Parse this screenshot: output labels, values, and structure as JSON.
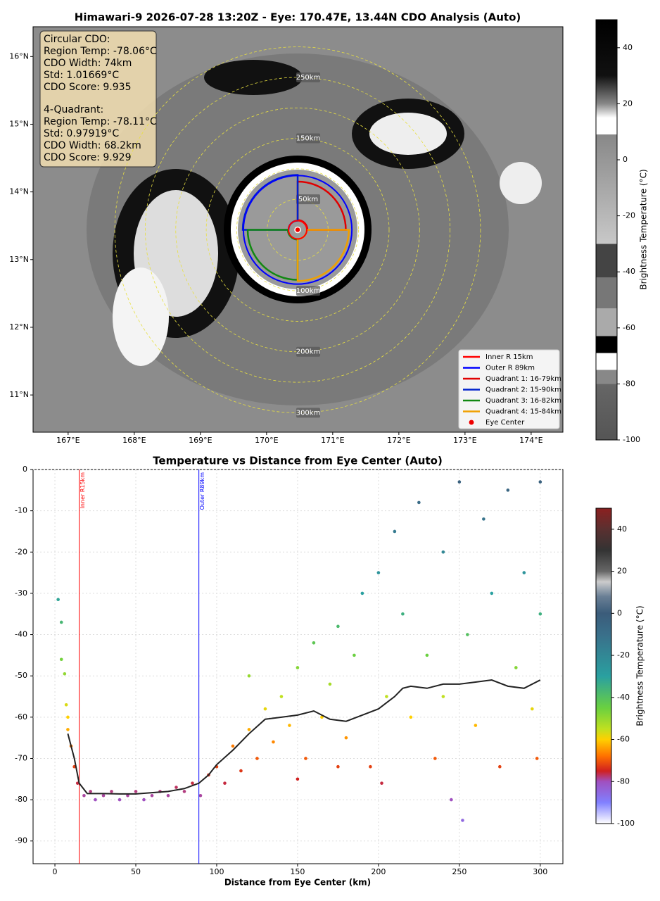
{
  "chart_data": [
    {
      "type": "map",
      "title": "Himawari-9 2026-07-28 13:20Z - Eye: 170.47E, 13.44N CDO Analysis (Auto)",
      "xlim": [
        166.47,
        174.48
      ],
      "ylim": [
        10.45,
        16.44
      ],
      "xticks": [
        {
          "value": 167,
          "label": "167°E"
        },
        {
          "value": 168,
          "label": "168°E"
        },
        {
          "value": 169,
          "label": "169°E"
        },
        {
          "value": 170,
          "label": "170°E"
        },
        {
          "value": 171,
          "label": "171°E"
        },
        {
          "value": 172,
          "label": "172°E"
        },
        {
          "value": 173,
          "label": "173°E"
        },
        {
          "value": 174,
          "label": "174°E"
        }
      ],
      "yticks": [
        {
          "value": 11,
          "label": "11°N"
        },
        {
          "value": 12,
          "label": "12°N"
        },
        {
          "value": 13,
          "label": "13°N"
        },
        {
          "value": 14,
          "label": "14°N"
        },
        {
          "value": 15,
          "label": "15°N"
        },
        {
          "value": 16,
          "label": "16°N"
        }
      ],
      "eye": {
        "lon": 170.47,
        "lat": 13.44
      },
      "rings": [
        {
          "value": 50,
          "label": "50km"
        },
        {
          "value": 100,
          "label": "100km"
        },
        {
          "value": 150,
          "label": "150km"
        },
        {
          "value": 200,
          "label": "200km"
        },
        {
          "value": 250,
          "label": "250km"
        },
        {
          "value": 300,
          "label": "300km"
        }
      ],
      "inner_r": {
        "value": 15,
        "label": "Inner R 15km",
        "color": "#ff0000"
      },
      "outer_r": {
        "value": 89,
        "label": "Outer R 89km",
        "color": "#0000ff"
      },
      "quadrants": [
        {
          "label": "Quadrant 1: 16-79km",
          "inner": 16,
          "outer": 79,
          "color": "#e00000"
        },
        {
          "label": "Quadrant 2: 15-90km",
          "inner": 15,
          "outer": 90,
          "color": "#0022cc"
        },
        {
          "label": "Quadrant 3: 16-82km",
          "inner": 16,
          "outer": 82,
          "color": "#118811"
        },
        {
          "label": "Quadrant 4: 15-84km",
          "inner": 15,
          "outer": 84,
          "color": "#f0a000"
        }
      ],
      "eye_label": "Eye Center",
      "info_box": {
        "circular": [
          "Circular CDO:",
          "Region Temp: -78.06°C",
          "CDO Width: 74km",
          "Std: 1.01669°C",
          "CDO Score: 9.935"
        ],
        "quadrant": [
          "4-Quadrant:",
          "Region Temp: -78.11°C",
          "Std: 0.97919°C",
          "CDO Width: 68.2km",
          "CDO Score: 9.929"
        ]
      },
      "colorbar": {
        "label": "Brightness Temperature (°C)",
        "lim": [
          -100,
          50
        ],
        "ticks": [
          -100,
          -80,
          -60,
          -40,
          -20,
          0,
          20,
          40
        ],
        "colormap": [
          {
            "value": 50,
            "color": "#000000"
          },
          {
            "value": 30,
            "color": "#111111"
          },
          {
            "value": 20,
            "color": "#888888"
          },
          {
            "value": 15,
            "color": "#ffffff"
          },
          {
            "value": 9,
            "color": "#ffffff"
          },
          {
            "value": 9,
            "color": "#888888"
          },
          {
            "value": -30,
            "color": "#c8c8c8"
          },
          {
            "value": -30,
            "color": "#444444"
          },
          {
            "value": -42,
            "color": "#444444"
          },
          {
            "value": -42,
            "color": "#777777"
          },
          {
            "value": -53,
            "color": "#777777"
          },
          {
            "value": -53,
            "color": "#aaaaaa"
          },
          {
            "value": -63,
            "color": "#aaaaaa"
          },
          {
            "value": -63,
            "color": "#000000"
          },
          {
            "value": -69,
            "color": "#000000"
          },
          {
            "value": -69,
            "color": "#ffffff"
          },
          {
            "value": -75,
            "color": "#ffffff"
          },
          {
            "value": -75,
            "color": "#888888"
          },
          {
            "value": -80,
            "color": "#888888"
          },
          {
            "value": -80,
            "color": "#666666"
          },
          {
            "value": -100,
            "color": "#555555"
          }
        ]
      }
    },
    {
      "type": "scatter",
      "title": "Temperature vs Distance from Eye Center (Auto)",
      "xlabel": "Distance from Eye Center (km)",
      "xlim": [
        -13.5,
        314
      ],
      "ylim": [
        -95.5,
        0
      ],
      "xticks": [
        0,
        50,
        100,
        150,
        200,
        250,
        300
      ],
      "yticks": [
        -90,
        -80,
        -70,
        -60,
        -50,
        -40,
        -30,
        -20,
        -10,
        0
      ],
      "grid": true,
      "x": [
        2,
        4,
        4,
        6,
        7,
        8,
        8,
        10,
        12,
        14,
        18,
        22,
        25,
        30,
        35,
        40,
        45,
        50,
        55,
        60,
        65,
        70,
        75,
        80,
        85,
        90,
        95,
        100,
        105,
        110,
        115,
        120,
        125,
        130,
        135,
        140,
        145,
        150,
        155,
        160,
        165,
        170,
        175,
        180,
        185,
        190,
        195,
        200,
        202,
        205,
        210,
        215,
        220,
        225,
        230,
        235,
        240,
        245,
        250,
        252,
        255,
        260,
        265,
        270,
        275,
        280,
        285,
        290,
        295,
        300,
        298,
        300,
        150,
        175,
        120,
        240
      ],
      "values": [
        -31.5,
        -37,
        -46,
        -49.5,
        -57,
        -60,
        -63,
        -67,
        -72,
        -76,
        -79,
        -78,
        -80,
        -79,
        -78,
        -80,
        -79,
        -78,
        -80,
        -79,
        -78,
        -79,
        -77,
        -78,
        -76,
        -79,
        -74,
        -72,
        -76,
        -67,
        -73,
        -63,
        -70,
        -58,
        -66,
        -55,
        -62,
        -48,
        -70,
        -42,
        -60,
        -52,
        -38,
        -65,
        -45,
        -30,
        -72,
        -25,
        -76,
        -55,
        -15,
        -35,
        -60,
        -8,
        -45,
        -70,
        -20,
        -80,
        -3,
        -85,
        -40,
        -62,
        -12,
        -30,
        -72,
        -5,
        -48,
        -25,
        -58,
        -35,
        -70,
        -3,
        -75,
        -72,
        -50,
        -55
      ],
      "line": {
        "color": "#222222",
        "x": [
          8,
          12,
          15,
          20,
          30,
          40,
          50,
          60,
          70,
          80,
          89,
          95,
          100,
          110,
          120,
          130,
          140,
          150,
          160,
          170,
          180,
          190,
          200,
          210,
          215,
          220,
          230,
          240,
          250,
          260,
          270,
          280,
          290,
          300
        ],
        "values": [
          -64,
          -70,
          -76,
          -78.5,
          -78.5,
          -78.6,
          -78.6,
          -78.3,
          -78,
          -77.3,
          -76,
          -74,
          -71.5,
          -68,
          -64,
          -60.5,
          -60,
          -59.5,
          -58.5,
          -60.5,
          -61,
          -59.5,
          -58,
          -55,
          -53,
          -52.5,
          -53,
          -52,
          -52,
          -51.5,
          -51,
          -52.5,
          -53,
          -51
        ]
      },
      "vlines": [
        {
          "value": 15,
          "label": "Inner R15km",
          "color": "#ff0000"
        },
        {
          "value": 89,
          "label": "Outer R89km",
          "color": "#0000ff"
        }
      ],
      "colorbar": {
        "label": "Brightness Temperature (°C)",
        "lim": [
          -100,
          50
        ],
        "ticks": [
          -100,
          -80,
          -60,
          -40,
          -20,
          0,
          20,
          40
        ],
        "colormap": [
          {
            "value": 50,
            "color": "#8b2020"
          },
          {
            "value": 40,
            "color": "#5a3030"
          },
          {
            "value": 30,
            "color": "#333333"
          },
          {
            "value": 20,
            "color": "#666666"
          },
          {
            "value": 15,
            "color": "#cccccc"
          },
          {
            "value": 8,
            "color": "#6a7f95"
          },
          {
            "value": 0,
            "color": "#3b5c7a"
          },
          {
            "value": -10,
            "color": "#3a6f8a"
          },
          {
            "value": -30,
            "color": "#2aa0a0"
          },
          {
            "value": -45,
            "color": "#6ad040"
          },
          {
            "value": -55,
            "color": "#c0e020"
          },
          {
            "value": -60,
            "color": "#ffd000"
          },
          {
            "value": -68,
            "color": "#ff7000"
          },
          {
            "value": -75,
            "color": "#d02020"
          },
          {
            "value": -80,
            "color": "#a050c0"
          },
          {
            "value": -90,
            "color": "#8080ff"
          },
          {
            "value": -100,
            "color": "#ffffff"
          }
        ]
      }
    }
  ]
}
